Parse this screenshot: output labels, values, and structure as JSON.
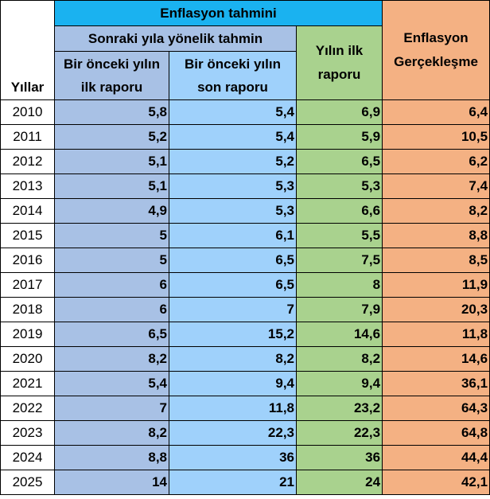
{
  "header": {
    "title": "Enflasyon tahmini",
    "subtitle": "Sonraki yıla yönelik tahmin",
    "years_label": "Yıllar",
    "col1_line1": "Bir önceki yılın",
    "col1_line2": "ilk raporu",
    "col2_line1": "Bir önceki yılın",
    "col2_line2": "son raporu",
    "col3_line1": "Yılın ilk",
    "col3_line2": "raporu",
    "col4_line1": "Enflasyon",
    "col4_line2": "Gerçekleşme"
  },
  "rows": [
    {
      "year": "2010",
      "prev_first": "5,8",
      "prev_last": "5,4",
      "year_first": "6,9",
      "actual": "6,4"
    },
    {
      "year": "2011",
      "prev_first": "5,2",
      "prev_last": "5,4",
      "year_first": "5,9",
      "actual": "10,5"
    },
    {
      "year": "2012",
      "prev_first": "5,1",
      "prev_last": "5,2",
      "year_first": "6,5",
      "actual": "6,2"
    },
    {
      "year": "2013",
      "prev_first": "5,1",
      "prev_last": "5,3",
      "year_first": "5,3",
      "actual": "7,4"
    },
    {
      "year": "2014",
      "prev_first": "4,9",
      "prev_last": "5,3",
      "year_first": "6,6",
      "actual": "8,2"
    },
    {
      "year": "2015",
      "prev_first": "5",
      "prev_last": "6,1",
      "year_first": "5,5",
      "actual": "8,8"
    },
    {
      "year": "2016",
      "prev_first": "5",
      "prev_last": "6,5",
      "year_first": "7,5",
      "actual": "8,5"
    },
    {
      "year": "2017",
      "prev_first": "6",
      "prev_last": "6,5",
      "year_first": "8",
      "actual": "11,9"
    },
    {
      "year": "2018",
      "prev_first": "6",
      "prev_last": "7",
      "year_first": "7,9",
      "actual": "20,3"
    },
    {
      "year": "2019",
      "prev_first": "6,5",
      "prev_last": "15,2",
      "year_first": "14,6",
      "actual": "11,8"
    },
    {
      "year": "2020",
      "prev_first": "8,2",
      "prev_last": "8,2",
      "year_first": "8,2",
      "actual": "14,6"
    },
    {
      "year": "2021",
      "prev_first": "5,4",
      "prev_last": "9,4",
      "year_first": "9,4",
      "actual": "36,1"
    },
    {
      "year": "2022",
      "prev_first": "7",
      "prev_last": "11,8",
      "year_first": "23,2",
      "actual": "64,3"
    },
    {
      "year": "2023",
      "prev_first": "8,2",
      "prev_last": "22,3",
      "year_first": "22,3",
      "actual": "64,8"
    },
    {
      "year": "2024",
      "prev_first": "8,8",
      "prev_last": "36",
      "year_first": "36",
      "actual": "44,4"
    },
    {
      "year": "2025",
      "prev_first": "14",
      "prev_last": "21",
      "year_first": "24",
      "actual": "42,1"
    }
  ],
  "colors": {
    "title_bg": "#1ab2f0",
    "prev_first_bg": "#a8c1e5",
    "prev_last_bg": "#9fd1fb",
    "year_first_bg": "#a9d28e",
    "actual_bg": "#f4b183"
  }
}
